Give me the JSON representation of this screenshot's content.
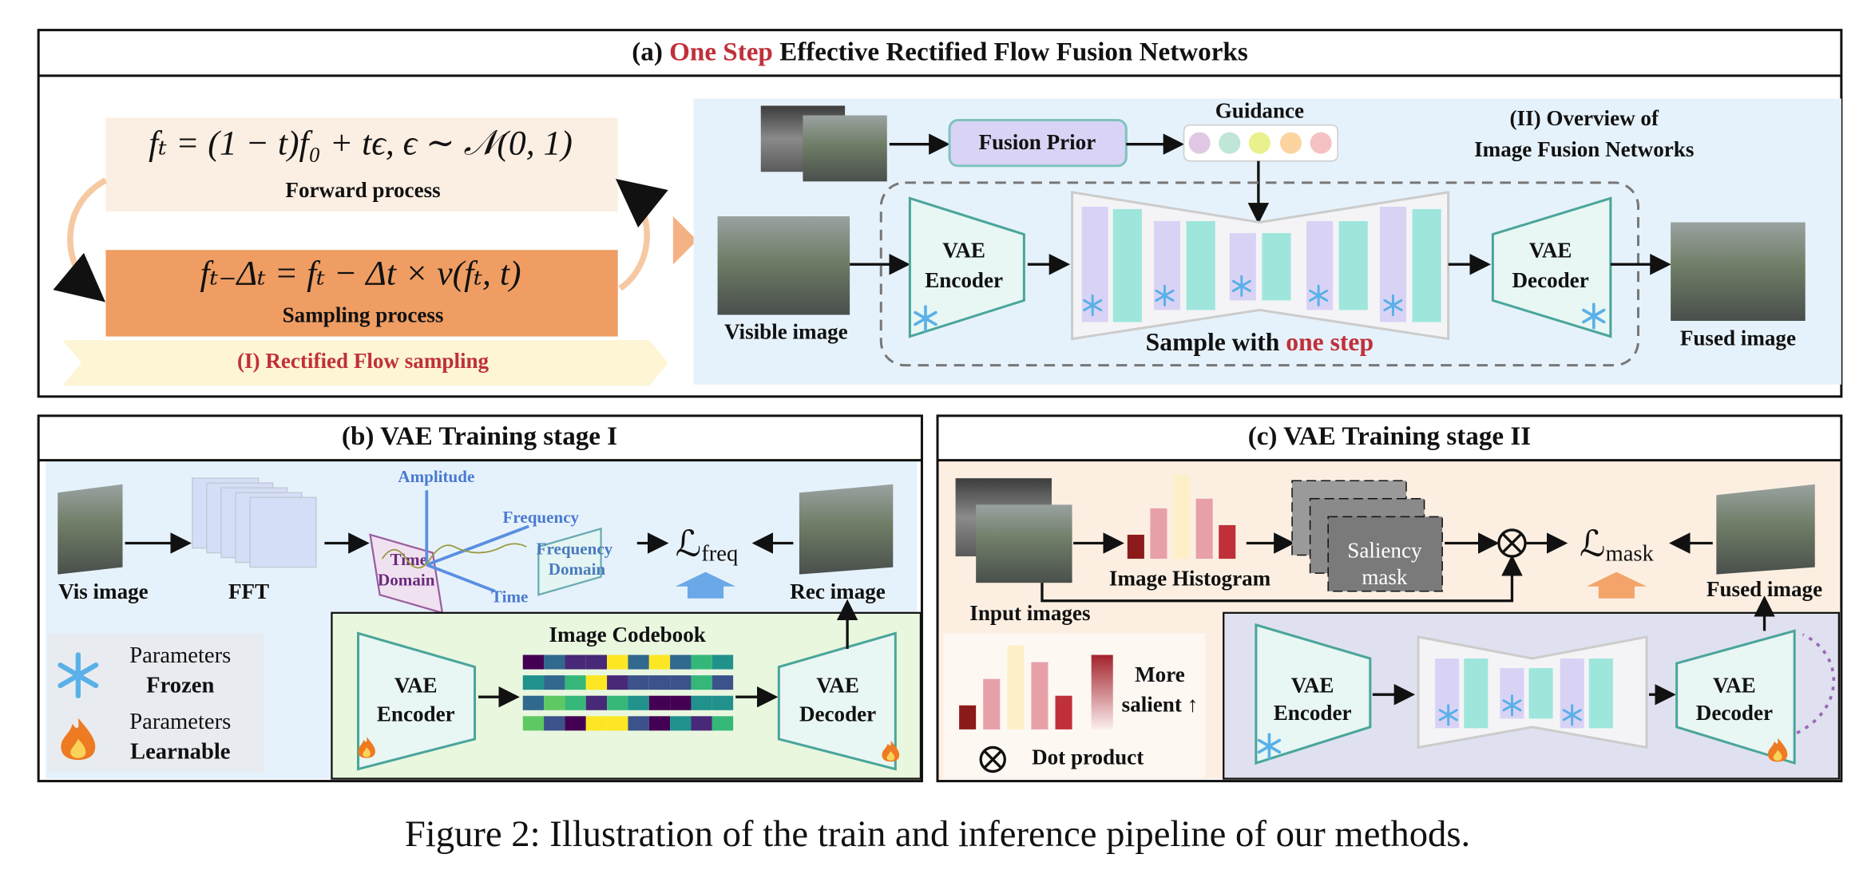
{
  "panel_a": {
    "title": {
      "prefix": "(a)",
      "highlight": "One Step",
      "suffix": "Effective Rectified Flow Fusion Networks"
    },
    "forward_equation": "fₜ = (1 − t)f₀ + tϵ, ϵ ∼ 𝒩(0, 1)",
    "forward_label": "Forward process",
    "sampling_equation": "fₜ₋Δₜ = fₜ − Δt × v(fₜ, t)",
    "sampling_label": "Sampling process",
    "section_label": "(I) Rectified Flow sampling",
    "overview_title": [
      "(II) Overview of",
      "Image Fusion Networks"
    ],
    "fusion_prior": "Fusion Prior",
    "guidance": "Guidance",
    "encoder": [
      "VAE",
      "Encoder"
    ],
    "decoder": [
      "VAE",
      "Decoder"
    ],
    "visible_image": "Visible image",
    "fused_image": "Fused image",
    "sample_caption": {
      "prefix": "Sample with",
      "highlight": "one step"
    }
  },
  "panel_b": {
    "title": "(b) VAE Training stage I",
    "vis_image": "Vis image",
    "fft": "FFT",
    "amplitude": "Amplitude",
    "frequency": "Frequency",
    "time": "Time",
    "time_domain": [
      "Time",
      "Domain"
    ],
    "frequency_domain": [
      "Frequency",
      "Domain"
    ],
    "loss": {
      "symbol": "ℒ",
      "subscript": "freq"
    },
    "rec_image": "Rec image",
    "codebook": "Image Codebook",
    "encoder": [
      "VAE",
      "Encoder"
    ],
    "decoder": [
      "VAE",
      "Decoder"
    ],
    "legend": {
      "frozen": [
        "Parameters",
        "Frozen"
      ],
      "learnable": [
        "Parameters",
        "Learnable"
      ]
    }
  },
  "panel_c": {
    "title": "(c) VAE Training stage II",
    "input_images": "Input images",
    "histogram": "Image Histogram",
    "saliency": [
      "Saliency",
      "mask"
    ],
    "loss": {
      "symbol": "ℒ",
      "subscript": "mask"
    },
    "fused_image": "Fused image",
    "more_salient": [
      "More",
      "salient ↑"
    ],
    "dot_product": "Dot product",
    "encoder": [
      "VAE",
      "Encoder"
    ],
    "decoder": [
      "VAE",
      "Decoder"
    ]
  },
  "caption": "Figure 2: Illustration of the train and inference pipeline of our methods."
}
